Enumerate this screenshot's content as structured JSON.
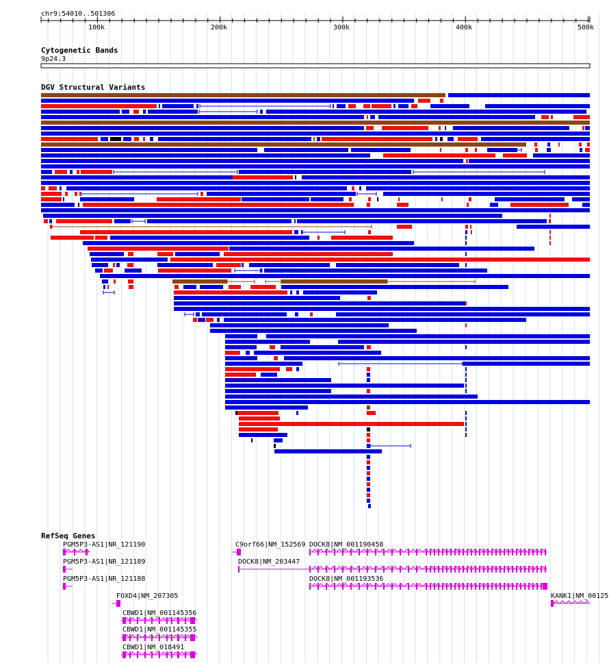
{
  "ruler": {
    "region_label": "chr9:54010..501306",
    "start": 54010,
    "end": 501306,
    "ticks": [
      {
        "pos": 100000,
        "label": "100k"
      },
      {
        "pos": 200000,
        "label": "200k"
      },
      {
        "pos": 300000,
        "label": "300k"
      },
      {
        "pos": 400000,
        "label": "400k"
      },
      {
        "pos": 500000,
        "label": "500k"
      }
    ]
  },
  "cytoband": {
    "title": "Cytogenetic Bands",
    "band_label": "9p24.3"
  },
  "dgv": {
    "title": "DGV Structural Variants",
    "colors": {
      "gain": "#0000dd",
      "loss": "#ee1111",
      "complex": "#8b4513",
      "inversion": "#000000"
    }
  },
  "refseq": {
    "title": "RefSeq Genes",
    "color": "#dd00dd",
    "genes": [
      {
        "name": "PGM5P3-AS1|NR_121190"
      },
      {
        "name": "PGM5P3-AS1|NR_121189"
      },
      {
        "name": "PGM5P3-AS1|NR_121188"
      },
      {
        "name": "C9orf66|NM_152569"
      },
      {
        "name": "DOCK8|NM_001190458"
      },
      {
        "name": "DOCK8|NM_203447"
      },
      {
        "name": "DOCK8|NM_001193536"
      },
      {
        "name": "FOXD4|NM_207305"
      },
      {
        "name": "KANK1|NM_00125"
      },
      {
        "name": "CBWD1|NM_001145356"
      },
      {
        "name": "CBWD1|NM_001145355"
      },
      {
        "name": "CBWD1|NM_018491"
      }
    ]
  }
}
